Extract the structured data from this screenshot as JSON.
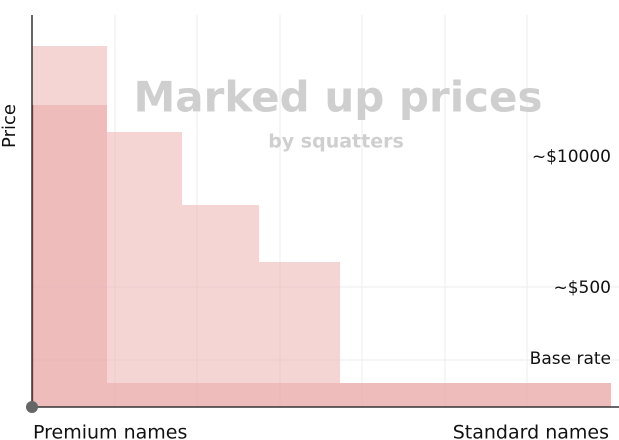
{
  "title": "Marked up prices",
  "subtitle": "by squatters",
  "y_axis_label": "Price",
  "x_axis_start": "Premium names",
  "x_axis_end": "Standard names",
  "annotations": [
    "~$10000",
    "~$500",
    "Base rate"
  ]
}
